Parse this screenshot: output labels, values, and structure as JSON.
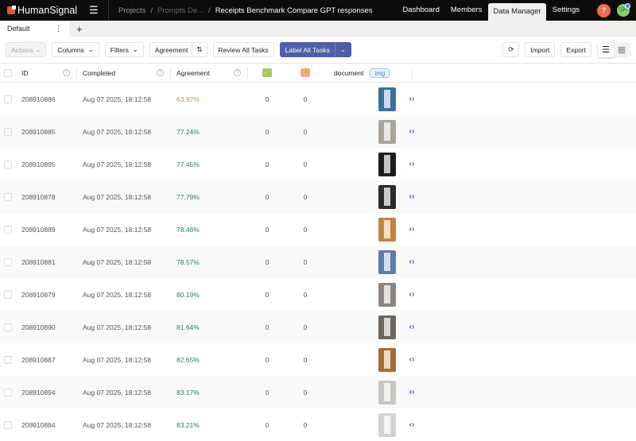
{
  "header": {
    "brand": "HumanSignal",
    "breadcrumbs": [
      "Projects",
      "Prompts De...",
      "Receipts Benchmark Compare GPT responses"
    ],
    "nav": [
      "Dashboard",
      "Members",
      "Data Manager",
      "Settings"
    ],
    "active_nav": "Data Manager",
    "help": "?",
    "avatar": "SH"
  },
  "tabs": {
    "items": [
      "Default"
    ],
    "menu": "⋮",
    "add": "+"
  },
  "toolbar": {
    "actions": "Actions",
    "columns": "Columns",
    "filters": "Filters",
    "sort": "Agreement",
    "review": "Review All Tasks",
    "label": "Label All Tasks",
    "import": "Import",
    "export": "Export"
  },
  "table": {
    "headers": {
      "id": "ID",
      "completed": "Completed",
      "agreement": "Agreement",
      "document": "document",
      "img_tag": "img"
    },
    "rows": [
      {
        "id": "208910886",
        "completed": "Aug 07 2025, 18:12:58",
        "agreement": "63.97%",
        "up": "0",
        "down": "0",
        "thumb": "#3a6f9e"
      },
      {
        "id": "208910885",
        "completed": "Aug 07 2025, 18:12:58",
        "agreement": "77.24%",
        "up": "0",
        "down": "0",
        "thumb": "#a9a49c"
      },
      {
        "id": "208910895",
        "completed": "Aug 07 2025, 18:12:58",
        "agreement": "77.45%",
        "up": "0",
        "down": "0",
        "thumb": "#1c1c1c"
      },
      {
        "id": "208910878",
        "completed": "Aug 07 2025, 18:12:58",
        "agreement": "77.79%",
        "up": "0",
        "down": "0",
        "thumb": "#2b2b2b"
      },
      {
        "id": "208910889",
        "completed": "Aug 07 2025, 18:12:58",
        "agreement": "78.46%",
        "up": "0",
        "down": "0",
        "thumb": "#c0843e"
      },
      {
        "id": "208910881",
        "completed": "Aug 07 2025, 18:12:58",
        "agreement": "78.57%",
        "up": "0",
        "down": "0",
        "thumb": "#5a7fa8"
      },
      {
        "id": "208910879",
        "completed": "Aug 07 2025, 18:12:58",
        "agreement": "80.19%",
        "up": "0",
        "down": "0",
        "thumb": "#8a8580"
      },
      {
        "id": "208910890",
        "completed": "Aug 07 2025, 18:12:58",
        "agreement": "81.64%",
        "up": "0",
        "down": "0",
        "thumb": "#6b6660"
      },
      {
        "id": "208910887",
        "completed": "Aug 07 2025, 18:12:58",
        "agreement": "82.65%",
        "up": "0",
        "down": "0",
        "thumb": "#a86d2e"
      },
      {
        "id": "208910894",
        "completed": "Aug 07 2025, 18:12:58",
        "agreement": "83.17%",
        "up": "0",
        "down": "0",
        "thumb": "#c9c7c3"
      },
      {
        "id": "208910884",
        "completed": "Aug 07 2025, 18:12:58",
        "agreement": "83.21%",
        "up": "0",
        "down": "0",
        "thumb": "#d5d3d0"
      }
    ]
  },
  "colors": {
    "accent": "#4c5fa8",
    "low_agreement": "#c8884a",
    "agreement": "#2b7a6f"
  }
}
